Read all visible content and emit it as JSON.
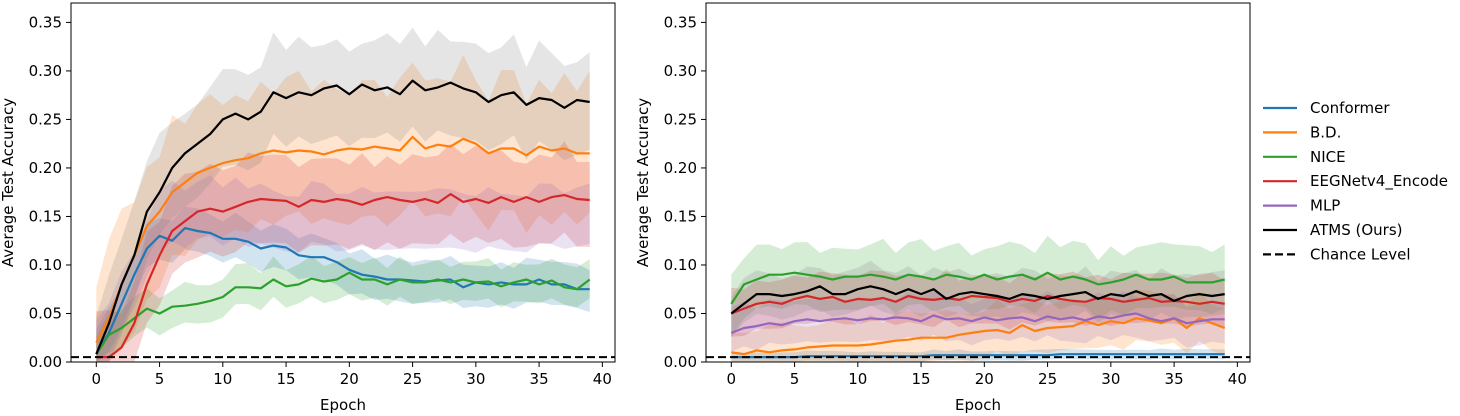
{
  "chart_data": [
    {
      "type": "line",
      "xlabel": "Epoch",
      "ylabel": "Average Test Accuracy",
      "xlim": [
        -2,
        41
      ],
      "ylim": [
        0,
        0.37
      ],
      "xticks": [
        0,
        5,
        10,
        15,
        20,
        25,
        30,
        35,
        40
      ],
      "yticks": [
        "0.00",
        "0.05",
        "0.10",
        "0.15",
        "0.20",
        "0.25",
        "0.30",
        "0.35"
      ],
      "chance_level": 0.005,
      "series": [
        {
          "name": "Conformer",
          "color": "#1f77b4",
          "band": 0.022,
          "values": [
            0.008,
            0.03,
            0.06,
            0.09,
            0.117,
            0.13,
            0.125,
            0.138,
            0.135,
            0.133,
            0.127,
            0.127,
            0.124,
            0.117,
            0.12,
            0.118,
            0.11,
            0.108,
            0.108,
            0.103,
            0.095,
            0.09,
            0.088,
            0.085,
            0.085,
            0.084,
            0.083,
            0.084,
            0.085,
            0.077,
            0.082,
            0.08,
            0.082,
            0.08,
            0.08,
            0.085,
            0.08,
            0.08,
            0.075,
            0.075
          ]
        },
        {
          "name": "B.D.",
          "color": "#ff7f0e",
          "band": 0.07,
          "values": [
            0.02,
            0.045,
            0.08,
            0.11,
            0.14,
            0.155,
            0.175,
            0.185,
            0.195,
            0.2,
            0.205,
            0.208,
            0.21,
            0.215,
            0.218,
            0.216,
            0.218,
            0.217,
            0.214,
            0.218,
            0.22,
            0.219,
            0.222,
            0.22,
            0.218,
            0.232,
            0.22,
            0.224,
            0.222,
            0.23,
            0.225,
            0.215,
            0.22,
            0.22,
            0.213,
            0.222,
            0.218,
            0.22,
            0.215,
            0.215
          ]
        },
        {
          "name": "NICE",
          "color": "#2ca02c",
          "band": 0.02,
          "values": [
            0.008,
            0.028,
            0.035,
            0.045,
            0.055,
            0.05,
            0.057,
            0.058,
            0.06,
            0.063,
            0.067,
            0.077,
            0.077,
            0.076,
            0.085,
            0.078,
            0.08,
            0.086,
            0.083,
            0.085,
            0.092,
            0.085,
            0.085,
            0.08,
            0.085,
            0.082,
            0.082,
            0.085,
            0.082,
            0.085,
            0.082,
            0.083,
            0.078,
            0.082,
            0.085,
            0.08,
            0.084,
            0.077,
            0.075,
            0.085
          ]
        },
        {
          "name": "EEGNetv4_Encode",
          "color": "#d62728",
          "band": 0.045,
          "values": [
            0.005,
            0.005,
            0.015,
            0.04,
            0.08,
            0.11,
            0.135,
            0.145,
            0.155,
            0.158,
            0.155,
            0.16,
            0.165,
            0.168,
            0.167,
            0.166,
            0.16,
            0.167,
            0.165,
            0.168,
            0.166,
            0.162,
            0.167,
            0.17,
            0.167,
            0.165,
            0.168,
            0.164,
            0.173,
            0.165,
            0.168,
            0.164,
            0.17,
            0.165,
            0.17,
            0.165,
            0.17,
            0.172,
            0.168,
            0.167
          ]
        },
        {
          "name": "MLP",
          "color": "#9467bd",
          "band": 0.03,
          "values": [
            0.008,
            0.03,
            0.06,
            0.09,
            0.12,
            0.14,
            0.15,
            0.148,
            0.16,
            0.155,
            0.15,
            0.155,
            0.148,
            0.148,
            0.15,
            0.148,
            0.147,
            0.15,
            0.148,
            0.145,
            0.148,
            0.15,
            0.148,
            0.145,
            0.148,
            0.15,
            0.148,
            0.145,
            0.148,
            0.15,
            0.145,
            0.148,
            0.15,
            0.148,
            0.147,
            0.15,
            0.148,
            0.15,
            0.148,
            0.148
          ],
          "line_hidden": true
        },
        {
          "name": "ATMS (Ours)",
          "color": "#000000",
          "band": 0.05,
          "values": [
            0.008,
            0.04,
            0.08,
            0.11,
            0.155,
            0.175,
            0.2,
            0.215,
            0.225,
            0.235,
            0.25,
            0.256,
            0.25,
            0.258,
            0.278,
            0.272,
            0.278,
            0.275,
            0.282,
            0.285,
            0.276,
            0.286,
            0.28,
            0.283,
            0.276,
            0.29,
            0.28,
            0.283,
            0.288,
            0.282,
            0.278,
            0.268,
            0.275,
            0.278,
            0.265,
            0.272,
            0.27,
            0.262,
            0.27,
            0.268
          ]
        }
      ]
    },
    {
      "type": "line",
      "xlabel": "Epoch",
      "ylabel": "Average Test Accuracy",
      "xlim": [
        -2,
        41
      ],
      "ylim": [
        0,
        0.37
      ],
      "xticks": [
        0,
        5,
        10,
        15,
        20,
        25,
        30,
        35,
        40
      ],
      "yticks": [
        "0.00",
        "0.05",
        "0.10",
        "0.15",
        "0.20",
        "0.25",
        "0.30",
        "0.35"
      ],
      "chance_level": 0.005,
      "series": [
        {
          "name": "Conformer",
          "color": "#1f77b4",
          "band": 0.005,
          "values": [
            0.005,
            0.005,
            0.005,
            0.005,
            0.005,
            0.005,
            0.006,
            0.006,
            0.006,
            0.006,
            0.006,
            0.006,
            0.006,
            0.006,
            0.006,
            0.006,
            0.007,
            0.007,
            0.007,
            0.007,
            0.007,
            0.007,
            0.007,
            0.007,
            0.007,
            0.007,
            0.008,
            0.008,
            0.008,
            0.008,
            0.008,
            0.008,
            0.008,
            0.008,
            0.008,
            0.008,
            0.008,
            0.008,
            0.008,
            0.008
          ]
        },
        {
          "name": "B.D.",
          "color": "#ff7f0e",
          "band": 0.025,
          "values": [
            0.01,
            0.008,
            0.012,
            0.01,
            0.012,
            0.013,
            0.015,
            0.016,
            0.017,
            0.017,
            0.017,
            0.018,
            0.02,
            0.022,
            0.023,
            0.025,
            0.025,
            0.025,
            0.028,
            0.03,
            0.032,
            0.033,
            0.03,
            0.038,
            0.032,
            0.035,
            0.036,
            0.037,
            0.042,
            0.038,
            0.042,
            0.04,
            0.045,
            0.043,
            0.04,
            0.045,
            0.035,
            0.045,
            0.04,
            0.035
          ]
        },
        {
          "name": "NICE",
          "color": "#2ca02c",
          "band": 0.032,
          "values": [
            0.06,
            0.08,
            0.085,
            0.09,
            0.09,
            0.092,
            0.09,
            0.088,
            0.085,
            0.088,
            0.088,
            0.09,
            0.088,
            0.085,
            0.09,
            0.088,
            0.085,
            0.09,
            0.088,
            0.085,
            0.09,
            0.085,
            0.088,
            0.09,
            0.085,
            0.092,
            0.085,
            0.088,
            0.085,
            0.08,
            0.082,
            0.085,
            0.09,
            0.085,
            0.085,
            0.088,
            0.082,
            0.082,
            0.082,
            0.085
          ]
        },
        {
          "name": "EEGNetv4_Encode",
          "color": "#d62728",
          "band": 0.025,
          "values": [
            0.05,
            0.055,
            0.06,
            0.062,
            0.06,
            0.065,
            0.068,
            0.065,
            0.067,
            0.062,
            0.065,
            0.064,
            0.066,
            0.062,
            0.068,
            0.065,
            0.064,
            0.066,
            0.064,
            0.068,
            0.067,
            0.066,
            0.062,
            0.065,
            0.063,
            0.068,
            0.065,
            0.063,
            0.062,
            0.066,
            0.065,
            0.062,
            0.064,
            0.066,
            0.062,
            0.063,
            0.062,
            0.06,
            0.062,
            0.06
          ]
        },
        {
          "name": "MLP",
          "color": "#9467bd",
          "band": 0.022,
          "values": [
            0.03,
            0.035,
            0.037,
            0.04,
            0.038,
            0.042,
            0.044,
            0.042,
            0.044,
            0.045,
            0.043,
            0.045,
            0.044,
            0.046,
            0.045,
            0.042,
            0.048,
            0.044,
            0.045,
            0.042,
            0.046,
            0.043,
            0.045,
            0.046,
            0.042,
            0.047,
            0.044,
            0.046,
            0.043,
            0.047,
            0.045,
            0.048,
            0.05,
            0.045,
            0.042,
            0.045,
            0.04,
            0.042,
            0.044,
            0.044
          ]
        },
        {
          "name": "ATMS (Ours)",
          "color": "#000000",
          "band": 0.022,
          "values": [
            0.05,
            0.06,
            0.07,
            0.07,
            0.068,
            0.07,
            0.073,
            0.078,
            0.07,
            0.07,
            0.075,
            0.078,
            0.075,
            0.07,
            0.075,
            0.07,
            0.075,
            0.065,
            0.07,
            0.072,
            0.07,
            0.068,
            0.065,
            0.07,
            0.068,
            0.065,
            0.068,
            0.07,
            0.072,
            0.065,
            0.07,
            0.068,
            0.073,
            0.068,
            0.07,
            0.063,
            0.068,
            0.07,
            0.068,
            0.07
          ]
        }
      ]
    }
  ],
  "legend": {
    "placement": "right",
    "entries": [
      {
        "label": "Conformer",
        "color": "#1f77b4",
        "dash": false
      },
      {
        "label": "B.D.",
        "color": "#ff7f0e",
        "dash": false
      },
      {
        "label": "NICE",
        "color": "#2ca02c",
        "dash": false
      },
      {
        "label": "EEGNetv4_Encode",
        "color": "#d62728",
        "dash": false
      },
      {
        "label": "MLP",
        "color": "#9467bd",
        "dash": false
      },
      {
        "label": "ATMS (Ours)",
        "color": "#000000",
        "dash": false
      },
      {
        "label": "Chance Level",
        "color": "#000000",
        "dash": true
      }
    ]
  }
}
